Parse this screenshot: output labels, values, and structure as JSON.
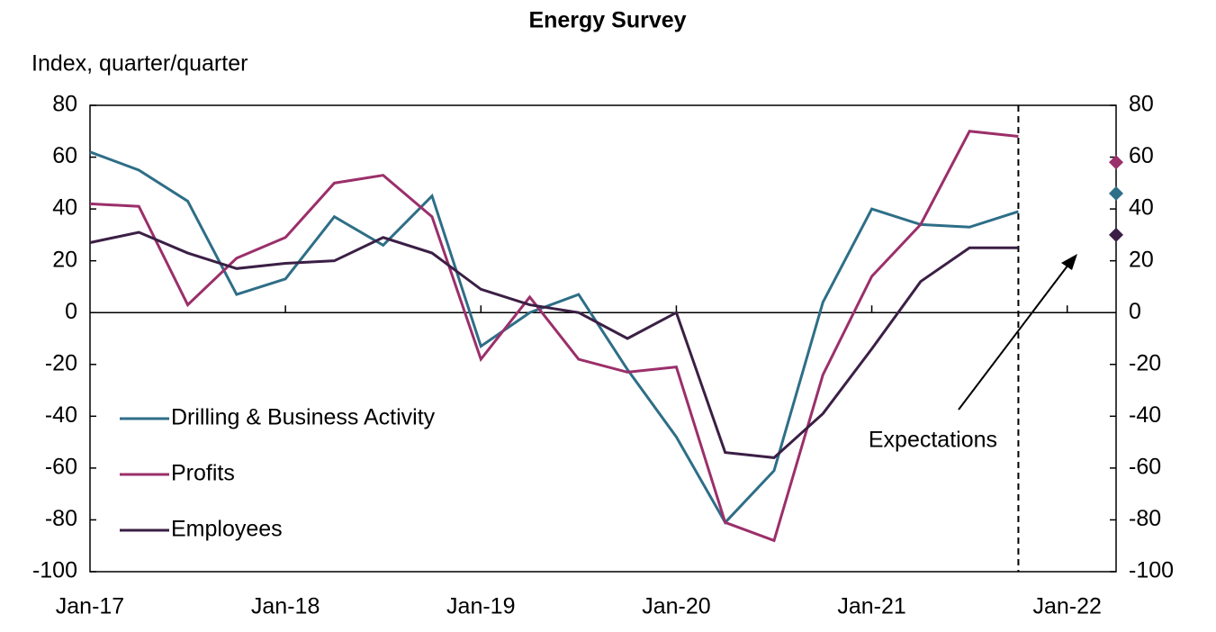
{
  "chart_data": {
    "type": "line",
    "title": "Energy Survey",
    "y_label": "Index, quarter/quarter",
    "categories": [
      "Jan-17",
      null,
      null,
      null,
      "Jan-18",
      null,
      null,
      null,
      "Jan-19",
      null,
      null,
      null,
      "Jan-20",
      null,
      null,
      null,
      "Jan-21",
      null,
      null,
      null,
      "Jan-22",
      null
    ],
    "series": [
      {
        "name": "Drilling & Business Activity",
        "color": "#2e6e87",
        "values": [
          62,
          55,
          43,
          7,
          13,
          37,
          26,
          45,
          -13,
          0,
          7,
          -22,
          -48,
          -81,
          -61,
          4,
          40,
          34,
          33,
          39,
          null,
          null
        ],
        "expected": 46
      },
      {
        "name": "Profits",
        "color": "#9b2f6a",
        "values": [
          42,
          41,
          3,
          21,
          29,
          50,
          53,
          37,
          -18,
          6,
          -18,
          -23,
          -21,
          -81,
          -88,
          -24,
          14,
          34,
          70,
          68,
          null,
          null
        ],
        "expected": 58
      },
      {
        "name": "Employees",
        "color": "#3b1f45",
        "values": [
          27,
          31,
          23,
          17,
          19,
          20,
          29,
          23,
          9,
          3,
          0,
          -10,
          0,
          -54,
          -56,
          -39,
          -14,
          12,
          25,
          25,
          null,
          null
        ],
        "expected": 30
      }
    ],
    "annotation": "Expectations",
    "ylim": [
      -100,
      80
    ],
    "yticks": [
      -100,
      -80,
      -60,
      -40,
      -20,
      0,
      20,
      40,
      60,
      80
    ],
    "y2lim": [
      -100,
      80
    ],
    "y2ticks": [
      -100,
      -80,
      -60,
      -40,
      -20,
      0,
      20,
      40,
      60,
      80
    ],
    "legend": "lower left"
  }
}
